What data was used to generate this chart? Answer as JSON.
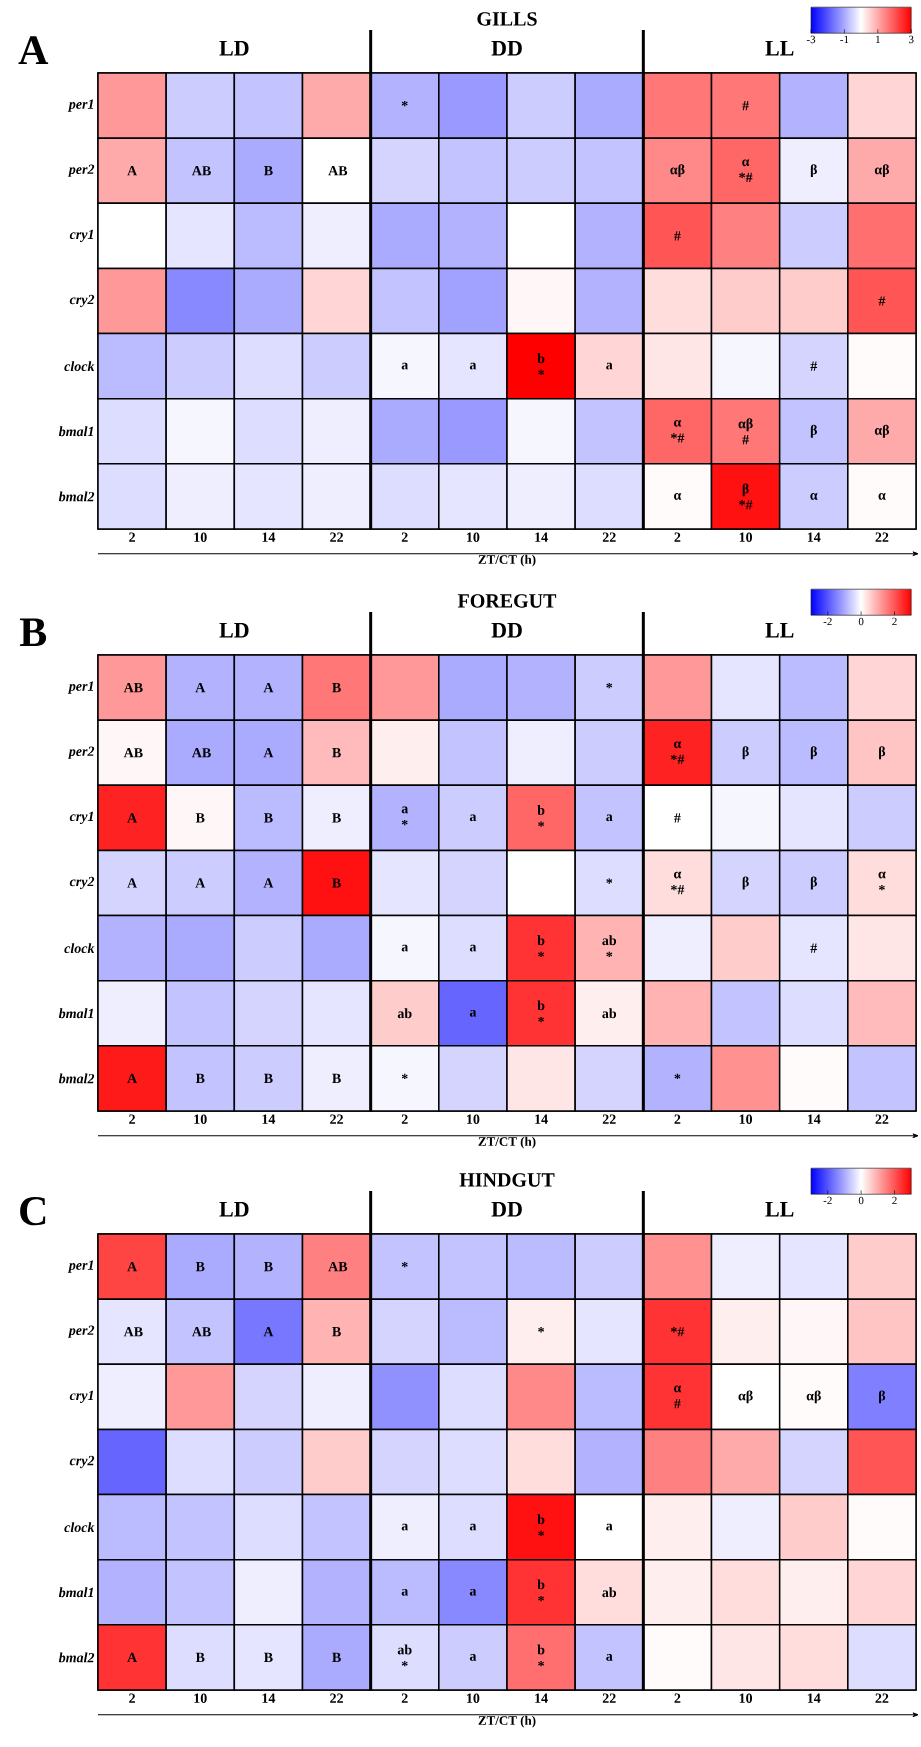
{
  "chart_data": [
    {
      "type": "heatmap",
      "title": "GILLS",
      "xlabel": "ZT/CT (h)",
      "annotations": [
        "A",
        "LD",
        "DD",
        "LL"
      ],
      "categories": [
        "2",
        "10",
        "14",
        "22",
        "2",
        "10",
        "14",
        "22",
        "2",
        "10",
        "14",
        "22"
      ],
      "y_categories": [
        "per1",
        "per2",
        "cry1",
        "cry2",
        "clock",
        "bmal1",
        "bmal2"
      ],
      "cells": [
        [
          1.2,
          -0.6,
          -0.7,
          1.0,
          -0.9,
          -1.2,
          -0.6,
          -1.0,
          1.6,
          1.6,
          -0.9,
          0.5
        ],
        [
          1.0,
          -0.7,
          -1.0,
          0,
          -0.5,
          -0.7,
          -0.6,
          -0.7,
          1.4,
          1.8,
          -0.2,
          1.0
        ],
        [
          0,
          -0.3,
          -0.8,
          -0.2,
          -1.0,
          -0.9,
          0,
          -0.9,
          2.0,
          1.5,
          -0.6,
          1.7
        ],
        [
          1.2,
          -1.4,
          -1.0,
          0.5,
          -0.7,
          -1.1,
          0.1,
          -0.9,
          0.4,
          0.6,
          0.6,
          2.0
        ],
        [
          -0.8,
          -0.6,
          -0.4,
          -0.6,
          -0.1,
          -0.3,
          3.0,
          0.5,
          0.3,
          -0.1,
          -0.5,
          0.05
        ],
        [
          -0.4,
          -0.1,
          -0.4,
          -0.2,
          -1.0,
          -1.2,
          -0.1,
          -0.7,
          1.8,
          1.6,
          -0.7,
          1.0
        ],
        [
          -0.4,
          -0.2,
          -0.3,
          -0.2,
          -0.4,
          -0.3,
          -0.2,
          -0.4,
          0.05,
          2.8,
          -0.6,
          0.05
        ]
      ],
      "cell_labels": [
        [
          null,
          null,
          null,
          null,
          "*",
          null,
          null,
          null,
          null,
          "#",
          null,
          null
        ],
        [
          "A",
          "AB",
          "B",
          "AB",
          null,
          null,
          null,
          null,
          "αβ",
          "α *#",
          "β",
          "αβ"
        ],
        [
          null,
          null,
          null,
          null,
          null,
          null,
          null,
          null,
          "#",
          null,
          null,
          null
        ],
        [
          null,
          null,
          null,
          null,
          null,
          null,
          null,
          null,
          null,
          null,
          null,
          "#"
        ],
        [
          null,
          null,
          null,
          null,
          "a",
          "a",
          "b *",
          "a",
          null,
          null,
          "#",
          null
        ],
        [
          null,
          null,
          null,
          null,
          null,
          null,
          null,
          null,
          "α *#",
          "αβ #",
          "β",
          "αβ"
        ],
        [
          null,
          null,
          null,
          null,
          null,
          null,
          null,
          null,
          "α",
          "β *#",
          "α",
          "α"
        ]
      ],
      "clim": [
        -3,
        3
      ],
      "cticks": [
        -3,
        -1,
        1,
        3
      ]
    },
    {
      "type": "heatmap",
      "title": "FOREGUT",
      "xlabel": "ZT/CT (h)",
      "annotations": [
        "B",
        "LD",
        "DD",
        "LL"
      ],
      "categories": [
        "2",
        "10",
        "14",
        "22",
        "2",
        "10",
        "14",
        "22",
        "2",
        "10",
        "14",
        "22"
      ],
      "y_categories": [
        "per1",
        "per2",
        "cry1",
        "cry2",
        "clock",
        "bmal1",
        "bmal2"
      ],
      "cells": [
        [
          1.2,
          -0.9,
          -0.9,
          1.6,
          1.2,
          -1.0,
          -0.9,
          -0.6,
          1.2,
          -0.3,
          -0.8,
          0.5
        ],
        [
          0.1,
          -1.0,
          -1.0,
          0.8,
          0.2,
          -0.7,
          -0.2,
          -0.6,
          2.6,
          -0.6,
          -0.8,
          0.7
        ],
        [
          2.6,
          0.1,
          -0.8,
          -0.2,
          -0.9,
          -0.6,
          1.8,
          -0.7,
          0,
          -0.1,
          -0.3,
          -0.6
        ],
        [
          -0.5,
          -0.6,
          -0.9,
          2.8,
          -0.3,
          -0.5,
          0,
          -0.4,
          0.4,
          -0.5,
          -0.6,
          0.4
        ],
        [
          -0.9,
          -1.0,
          -0.6,
          -1.0,
          -0.1,
          -0.4,
          2.4,
          0.9,
          -0.2,
          0.6,
          -0.3,
          0.3
        ],
        [
          -0.2,
          -0.7,
          -0.5,
          -0.3,
          0.6,
          -1.8,
          2.4,
          0.2,
          0.9,
          -0.7,
          -0.4,
          0.8
        ],
        [
          2.7,
          -0.7,
          -0.6,
          -0.2,
          -0.1,
          -0.5,
          0.3,
          -0.5,
          -0.9,
          1.3,
          0.05,
          -0.7
        ]
      ],
      "cell_labels": [
        [
          "AB",
          "A",
          "A",
          "B",
          null,
          null,
          null,
          "*",
          null,
          null,
          null,
          null
        ],
        [
          "AB",
          "AB",
          "A",
          "B",
          null,
          null,
          null,
          null,
          "α *#",
          "β",
          "β",
          "β"
        ],
        [
          "A",
          "B",
          "B",
          "B",
          "a *",
          "a",
          "b *",
          "a",
          "#",
          null,
          null,
          null
        ],
        [
          "A",
          "A",
          "A",
          "B",
          null,
          null,
          null,
          "*",
          "α *#",
          "β",
          "β",
          "α *"
        ],
        [
          null,
          null,
          null,
          null,
          "a",
          "a",
          "b *",
          "ab *",
          null,
          null,
          "#",
          null
        ],
        [
          null,
          null,
          null,
          null,
          "ab",
          "a",
          "b *",
          "ab",
          null,
          null,
          null,
          null
        ],
        [
          "A",
          "B",
          "B",
          "B",
          "*",
          null,
          null,
          null,
          "*",
          null,
          null,
          null
        ]
      ],
      "clim": [
        -3,
        3
      ],
      "cticks": [
        -2,
        0,
        2
      ]
    },
    {
      "type": "heatmap",
      "title": "HINDGUT",
      "xlabel": "ZT/CT (h)",
      "annotations": [
        "C",
        "LD",
        "DD",
        "LL"
      ],
      "categories": [
        "2",
        "10",
        "14",
        "22",
        "2",
        "10",
        "14",
        "22",
        "2",
        "10",
        "14",
        "22"
      ],
      "y_categories": [
        "per1",
        "per2",
        "cry1",
        "cry2",
        "clock",
        "bmal1",
        "bmal2"
      ],
      "cells": [
        [
          2.2,
          -1.0,
          -0.9,
          1.5,
          -0.7,
          -0.7,
          -0.8,
          -0.6,
          1.3,
          -0.2,
          -0.3,
          0.6
        ],
        [
          -0.3,
          -0.7,
          -1.6,
          0.9,
          -0.5,
          -0.8,
          0.2,
          -0.3,
          2.4,
          0.2,
          0.1,
          0.7
        ],
        [
          -0.2,
          1.2,
          -0.5,
          -0.2,
          -1.3,
          -0.4,
          1.4,
          -0.8,
          2.4,
          0,
          0.05,
          -1.5
        ],
        [
          -1.8,
          -0.4,
          -0.6,
          0.6,
          -0.5,
          -0.4,
          0.4,
          -0.9,
          1.5,
          1.0,
          -0.5,
          2.0
        ],
        [
          -0.8,
          -0.7,
          -0.4,
          -0.7,
          -0.2,
          -0.4,
          2.8,
          0,
          0.2,
          -0.2,
          0.6,
          0.05
        ],
        [
          -0.9,
          -0.7,
          -0.2,
          -0.9,
          -0.8,
          -1.4,
          2.4,
          0.4,
          0.2,
          0.4,
          0.2,
          0.5
        ],
        [
          2.4,
          -0.4,
          -0.3,
          -1.0,
          -0.4,
          -0.6,
          1.7,
          -0.7,
          0.05,
          0.3,
          0.4,
          -0.4
        ]
      ],
      "cell_labels": [
        [
          "A",
          "B",
          "B",
          "AB",
          "*",
          null,
          null,
          null,
          null,
          null,
          null,
          null
        ],
        [
          "AB",
          "AB",
          "A",
          "B",
          null,
          null,
          "*",
          null,
          "*#",
          null,
          null,
          null
        ],
        [
          null,
          null,
          null,
          null,
          null,
          null,
          null,
          null,
          "α #",
          "αβ",
          "αβ",
          "β"
        ],
        [
          null,
          null,
          null,
          null,
          null,
          null,
          null,
          null,
          null,
          null,
          null,
          null
        ],
        [
          null,
          null,
          null,
          null,
          "a",
          "a",
          "b *",
          "a",
          null,
          null,
          null,
          null
        ],
        [
          null,
          null,
          null,
          null,
          "a",
          "a",
          "b *",
          "ab",
          null,
          null,
          null,
          null
        ],
        [
          "A",
          "B",
          "B",
          "B",
          "ab *",
          "a",
          "b *",
          "a",
          null,
          null,
          null,
          null
        ]
      ],
      "clim": [
        -3,
        3
      ],
      "cticks": [
        -2,
        0,
        2
      ]
    }
  ]
}
